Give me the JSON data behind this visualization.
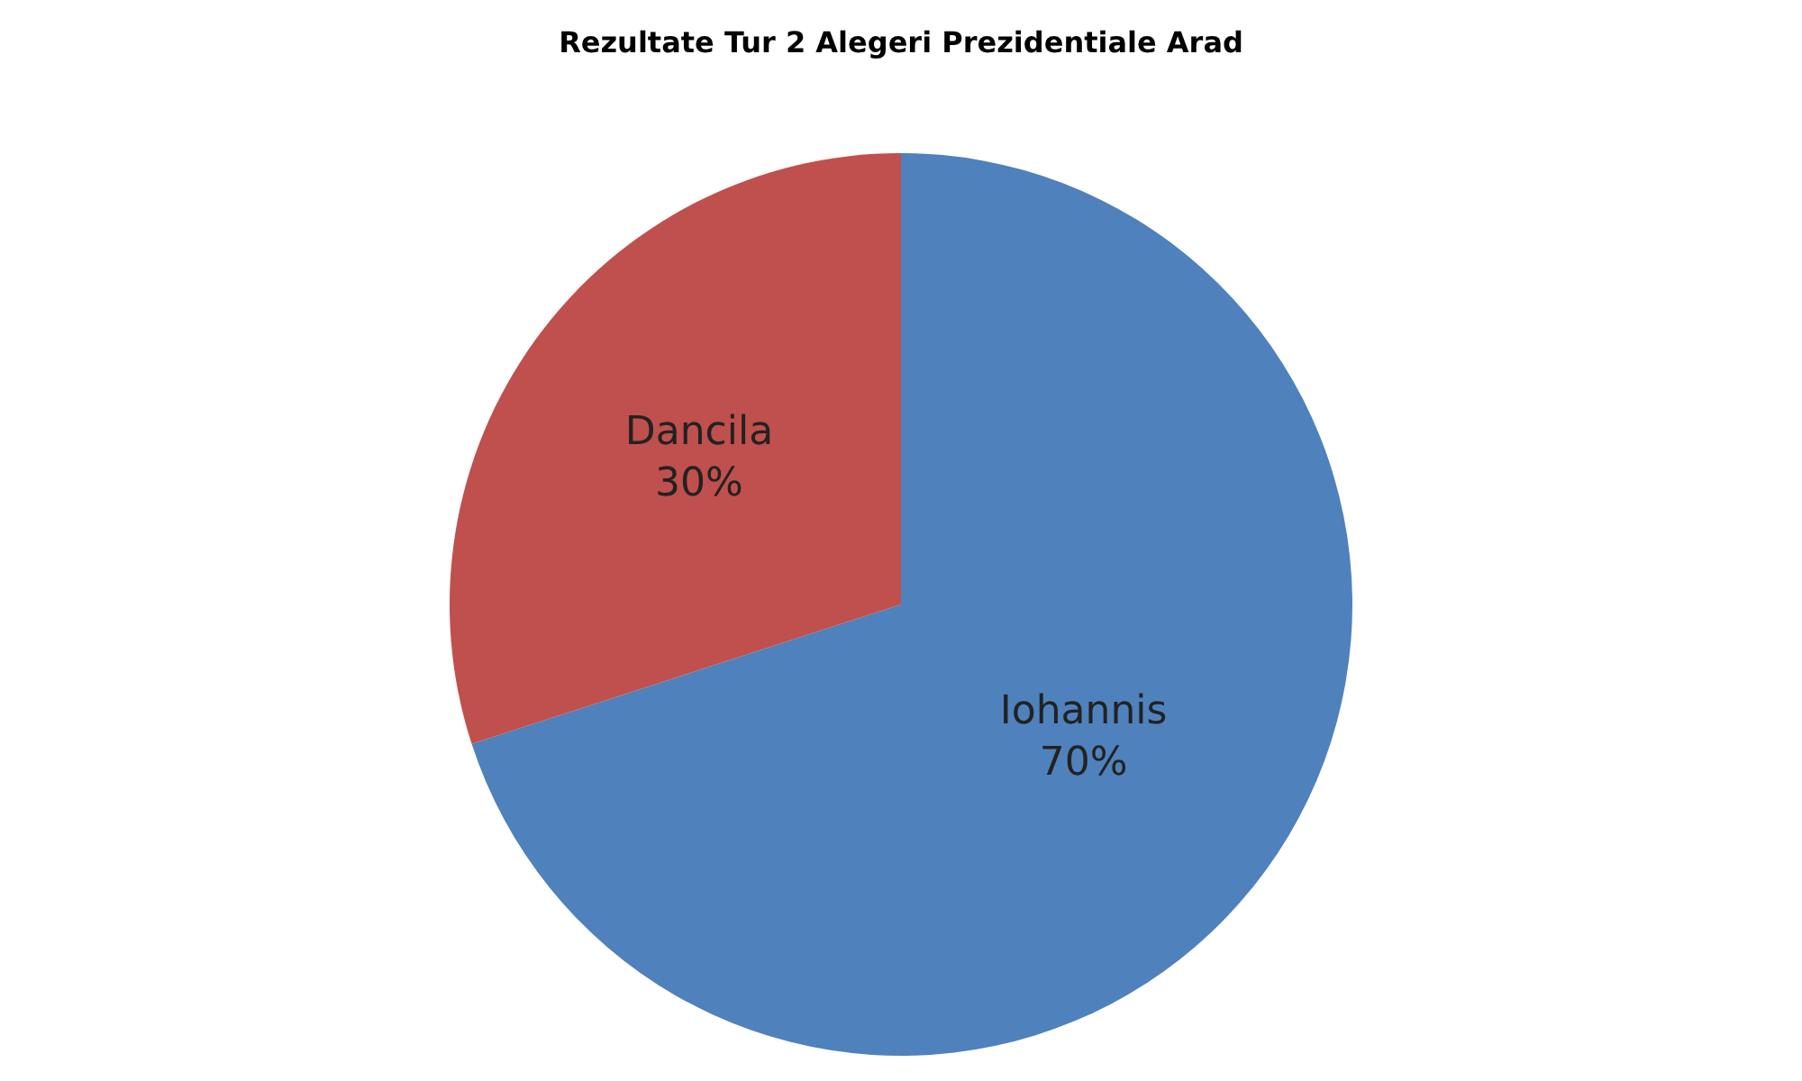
{
  "chart_data": {
    "type": "pie",
    "title": "Rezultate Tur 2 Alegeri Prezidentiale Arad",
    "categories": [
      "Iohannis",
      "Dancila"
    ],
    "values": [
      70,
      30
    ],
    "value_labels": [
      "70%",
      "30%"
    ],
    "colors": [
      "#4f81bd",
      "#c0504d"
    ],
    "legend": false
  }
}
